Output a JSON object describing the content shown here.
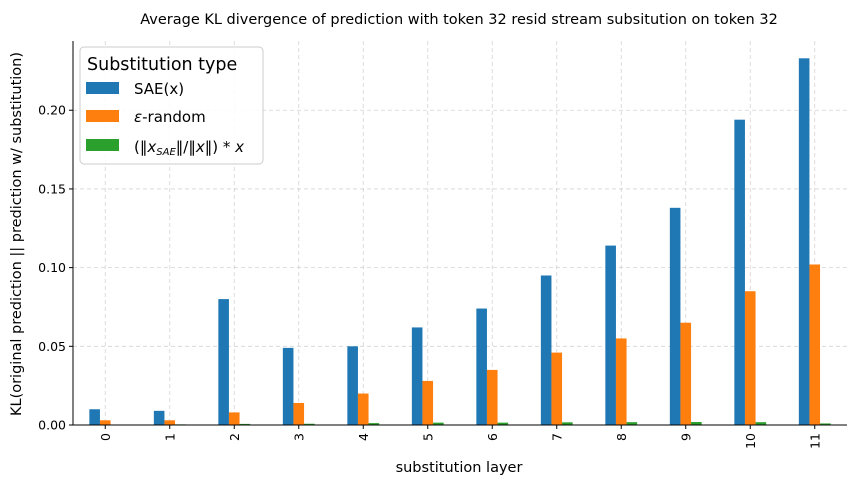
{
  "chart_data": {
    "type": "bar",
    "title": "Average KL divergence of prediction with token 32 resid stream subsitution on token 32",
    "xlabel": "substitution layer",
    "ylabel": "KL(original prediction || prediction w/ substitution)",
    "categories": [
      "0",
      "1",
      "2",
      "3",
      "4",
      "5",
      "6",
      "7",
      "8",
      "9",
      "10",
      "11"
    ],
    "ylim": [
      0,
      0.244
    ],
    "yticks": [
      0.0,
      0.05,
      0.1,
      0.15,
      0.2
    ],
    "ytick_labels": [
      "0.00",
      "0.05",
      "0.10",
      "0.15",
      "0.20"
    ],
    "grid": true,
    "legend": {
      "title": "Substitution type",
      "placement": "top-left"
    },
    "series": [
      {
        "name": "SAE(x)",
        "color": "#1f77b4",
        "values": [
          0.01,
          0.009,
          0.08,
          0.049,
          0.05,
          0.062,
          0.074,
          0.095,
          0.114,
          0.138,
          0.194,
          0.233
        ]
      },
      {
        "name": "ε-random",
        "color": "#ff7f0e",
        "values": [
          0.003,
          0.003,
          0.008,
          0.014,
          0.02,
          0.028,
          0.035,
          0.046,
          0.055,
          0.065,
          0.085,
          0.102
        ]
      },
      {
        "name": "(‖x_SAE‖/‖x‖)*x",
        "color": "#2ca02c",
        "values": [
          0.0003,
          0.0004,
          0.0007,
          0.0008,
          0.0012,
          0.0015,
          0.0015,
          0.0017,
          0.0018,
          0.0019,
          0.0018,
          0.001
        ]
      }
    ]
  }
}
